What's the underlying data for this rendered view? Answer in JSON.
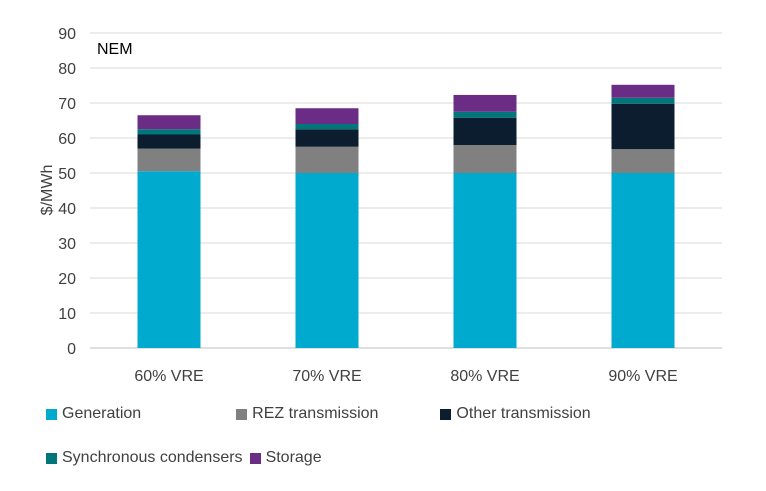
{
  "chart_data": {
    "type": "bar",
    "stacked": true,
    "title": "NEM",
    "ylabel": "$/MWh",
    "xlabel": "",
    "ylim": [
      0,
      90
    ],
    "yticks": [
      0,
      10,
      20,
      30,
      40,
      50,
      60,
      70,
      80,
      90
    ],
    "grid": true,
    "legend_position": "bottom",
    "categories": [
      "60% VRE",
      "70% VRE",
      "80% VRE",
      "90% VRE"
    ],
    "series": [
      {
        "name": "Generation",
        "color": "#00a9ce",
        "values": [
          50.5,
          50,
          50,
          50
        ]
      },
      {
        "name": "REZ transmission",
        "color": "#808080",
        "values": [
          6.5,
          7.5,
          8,
          6.8
        ]
      },
      {
        "name": "Other transmission",
        "color": "#0b1d2e",
        "values": [
          4,
          5,
          7.8,
          13
        ]
      },
      {
        "name": "Synchronous condensers",
        "color": "#00757a",
        "values": [
          1.5,
          1.5,
          1.7,
          1.7
        ]
      },
      {
        "name": "Storage",
        "color": "#6b2c85",
        "values": [
          4,
          4.5,
          4.8,
          3.7
        ]
      }
    ]
  }
}
